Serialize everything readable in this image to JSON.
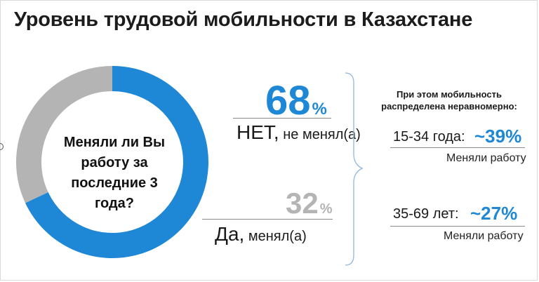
{
  "title": "Уровень трудовой мобильности в Казахстане",
  "colors": {
    "accent": "#1e87d6",
    "secondary": "#b4b4b4"
  },
  "chart_data": {
    "type": "pie",
    "variant": "donut",
    "center_text": "Меняли ли Вы работу за последние 3 года?",
    "slices": [
      {
        "label": "НЕТ, не менял(а)",
        "value": 68,
        "color": "#1e87d6"
      },
      {
        "label": "Да, менял(а)",
        "value": 32,
        "color": "#b4b4b4"
      }
    ]
  },
  "answers": {
    "no": {
      "pct": "68",
      "sign": "%",
      "lead": "НЕТ,",
      "rest": " не менял(а)"
    },
    "yes": {
      "pct": "32",
      "sign": "%",
      "lead": "Да,",
      "rest": " менял(а)"
    }
  },
  "distribution": {
    "heading_line1": "При этом мобильность",
    "heading_line2": "распределена неравномерно:",
    "groups": [
      {
        "age": "15-34 года:",
        "value": "~39%",
        "note": "Меняли работу"
      },
      {
        "age": "35-69 лет:",
        "value": "~27%",
        "note": "Меняли работу"
      }
    ]
  }
}
